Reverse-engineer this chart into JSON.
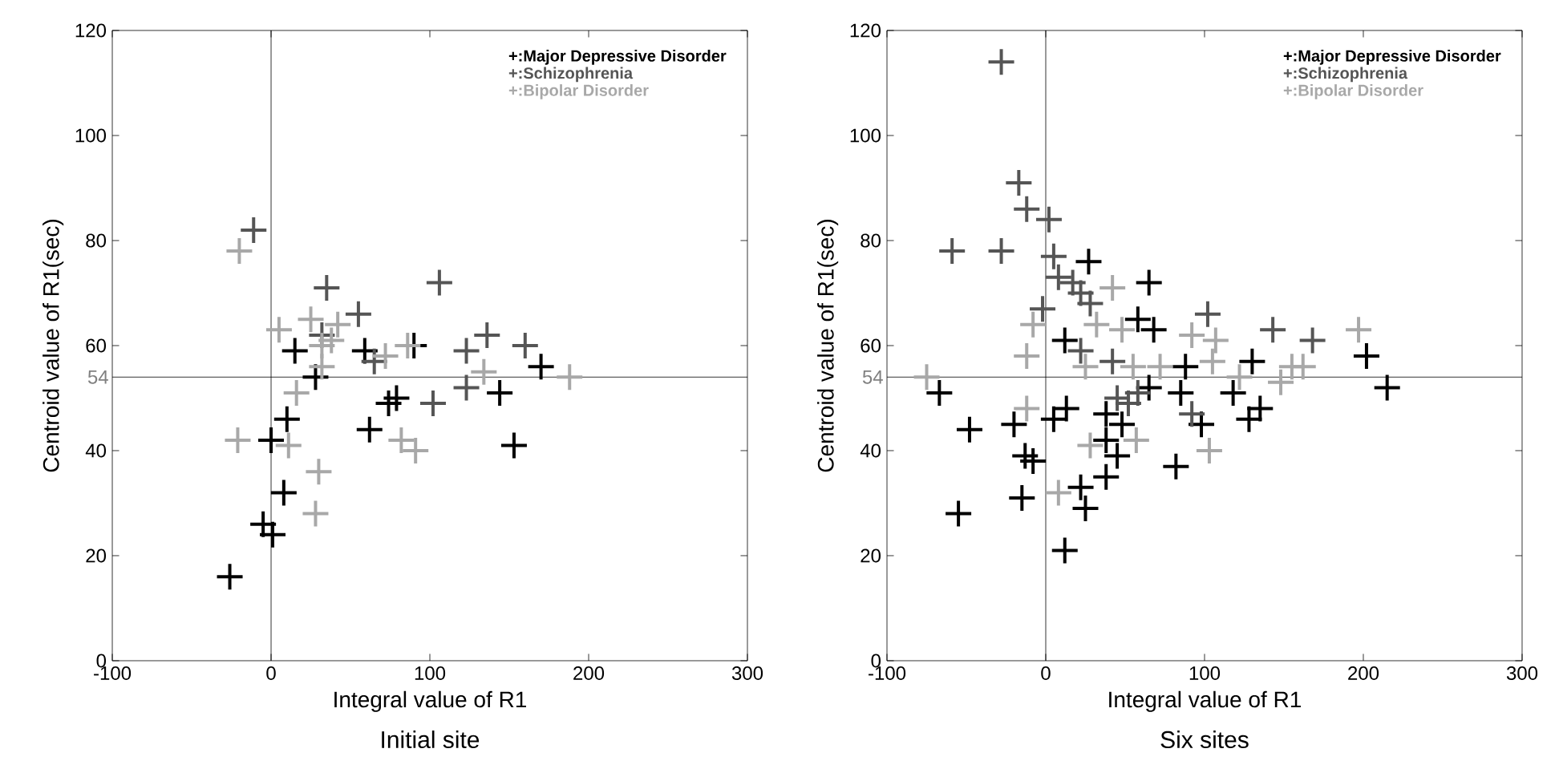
{
  "chart_data": [
    {
      "type": "scatter",
      "title": "Initial site",
      "xlabel": "Integral value of R1",
      "ylabel": "Centroid value of R1(sec)",
      "xlim": [
        -100,
        300
      ],
      "ylim": [
        0,
        120
      ],
      "xticks": [
        -100,
        0,
        100,
        200,
        300
      ],
      "yticks": [
        0,
        20,
        40,
        60,
        80,
        100,
        120
      ],
      "marker": "cross",
      "legend": "top right",
      "ref_lines": [
        {
          "axis": "x",
          "value": 0,
          "label": null,
          "color": "#000000"
        },
        {
          "axis": "y",
          "value": 54,
          "label": "54",
          "color": "#000000"
        }
      ],
      "series": [
        {
          "name": "+:Major Depressive Disorder",
          "color": "#000000",
          "x": [
            -26,
            -5,
            1,
            8,
            0,
            10,
            15,
            28,
            59,
            90,
            62,
            74,
            79,
            144,
            170,
            153
          ],
          "values": [
            16,
            26,
            24,
            32,
            42,
            46,
            59,
            54,
            59,
            60,
            44,
            49,
            50,
            51,
            56,
            41
          ]
        },
        {
          "name": "+:Schizophrenia",
          "color": "#555555",
          "x": [
            -11,
            35,
            32,
            55,
            65,
            106,
            102,
            123,
            136,
            123,
            160
          ],
          "values": [
            82,
            71,
            62,
            66,
            57,
            72,
            49,
            59,
            62,
            52,
            60
          ]
        },
        {
          "name": "+:Bipolar Disorder",
          "color": "#a8a8a8",
          "x": [
            -20,
            -21,
            11,
            30,
            28,
            16,
            5,
            25,
            42,
            32,
            72,
            86,
            82,
            91,
            134,
            188,
            32,
            38
          ],
          "values": [
            78,
            42,
            41,
            36,
            28,
            51,
            63,
            65,
            64,
            56,
            58,
            60,
            42,
            40,
            55,
            54,
            60,
            61
          ]
        }
      ]
    },
    {
      "type": "scatter",
      "title": "Six sites",
      "xlabel": "Integral value of R1",
      "ylabel": "Centroid value of R1(sec)",
      "xlim": [
        -100,
        300
      ],
      "ylim": [
        0,
        120
      ],
      "xticks": [
        -100,
        0,
        100,
        200,
        300
      ],
      "yticks": [
        0,
        20,
        40,
        60,
        80,
        100,
        120
      ],
      "marker": "cross",
      "legend": "top right",
      "ref_lines": [
        {
          "axis": "x",
          "value": 0,
          "label": null,
          "color": "#000000"
        },
        {
          "axis": "y",
          "value": 54,
          "label": "54",
          "color": "#000000"
        }
      ],
      "series": [
        {
          "name": "+:Major Depressive Disorder",
          "color": "#000000",
          "x": [
            27,
            65,
            12,
            68,
            58,
            -67,
            -48,
            -55,
            -20,
            -13,
            -8,
            -15,
            12,
            5,
            13,
            25,
            22,
            38,
            45,
            65,
            38,
            48,
            38,
            85,
            88,
            98,
            82,
            118,
            130,
            128,
            135,
            202,
            215
          ],
          "values": [
            76,
            72,
            61,
            63,
            65,
            51,
            44,
            28,
            45,
            39,
            38,
            31,
            21,
            46,
            48,
            29,
            33,
            35,
            39,
            52,
            47,
            45,
            42,
            51,
            56,
            45,
            37,
            51,
            57,
            46,
            48,
            58,
            52
          ]
        },
        {
          "name": "+:Schizophrenia",
          "color": "#555555",
          "x": [
            -28,
            -17,
            -12,
            2,
            -59,
            -28,
            5,
            8,
            17,
            22,
            -2,
            28,
            22,
            102,
            42,
            45,
            52,
            58,
            92,
            143,
            168
          ],
          "values": [
            114,
            91,
            86,
            84,
            78,
            78,
            77,
            73,
            72,
            70,
            67,
            68,
            59,
            66,
            57,
            50,
            49,
            51,
            47,
            63,
            61
          ]
        },
        {
          "name": "+:Bipolar Disorder",
          "color": "#a8a8a8",
          "x": [
            42,
            -8,
            32,
            48,
            92,
            107,
            105,
            -12,
            -75,
            -12,
            8,
            28,
            25,
            55,
            72,
            57,
            103,
            122,
            148,
            155,
            162,
            197
          ],
          "values": [
            71,
            64,
            64,
            63,
            62,
            61,
            57,
            58,
            54,
            48,
            32,
            41,
            56,
            56,
            56,
            42,
            40,
            54,
            53,
            56,
            56,
            63
          ]
        }
      ]
    }
  ]
}
